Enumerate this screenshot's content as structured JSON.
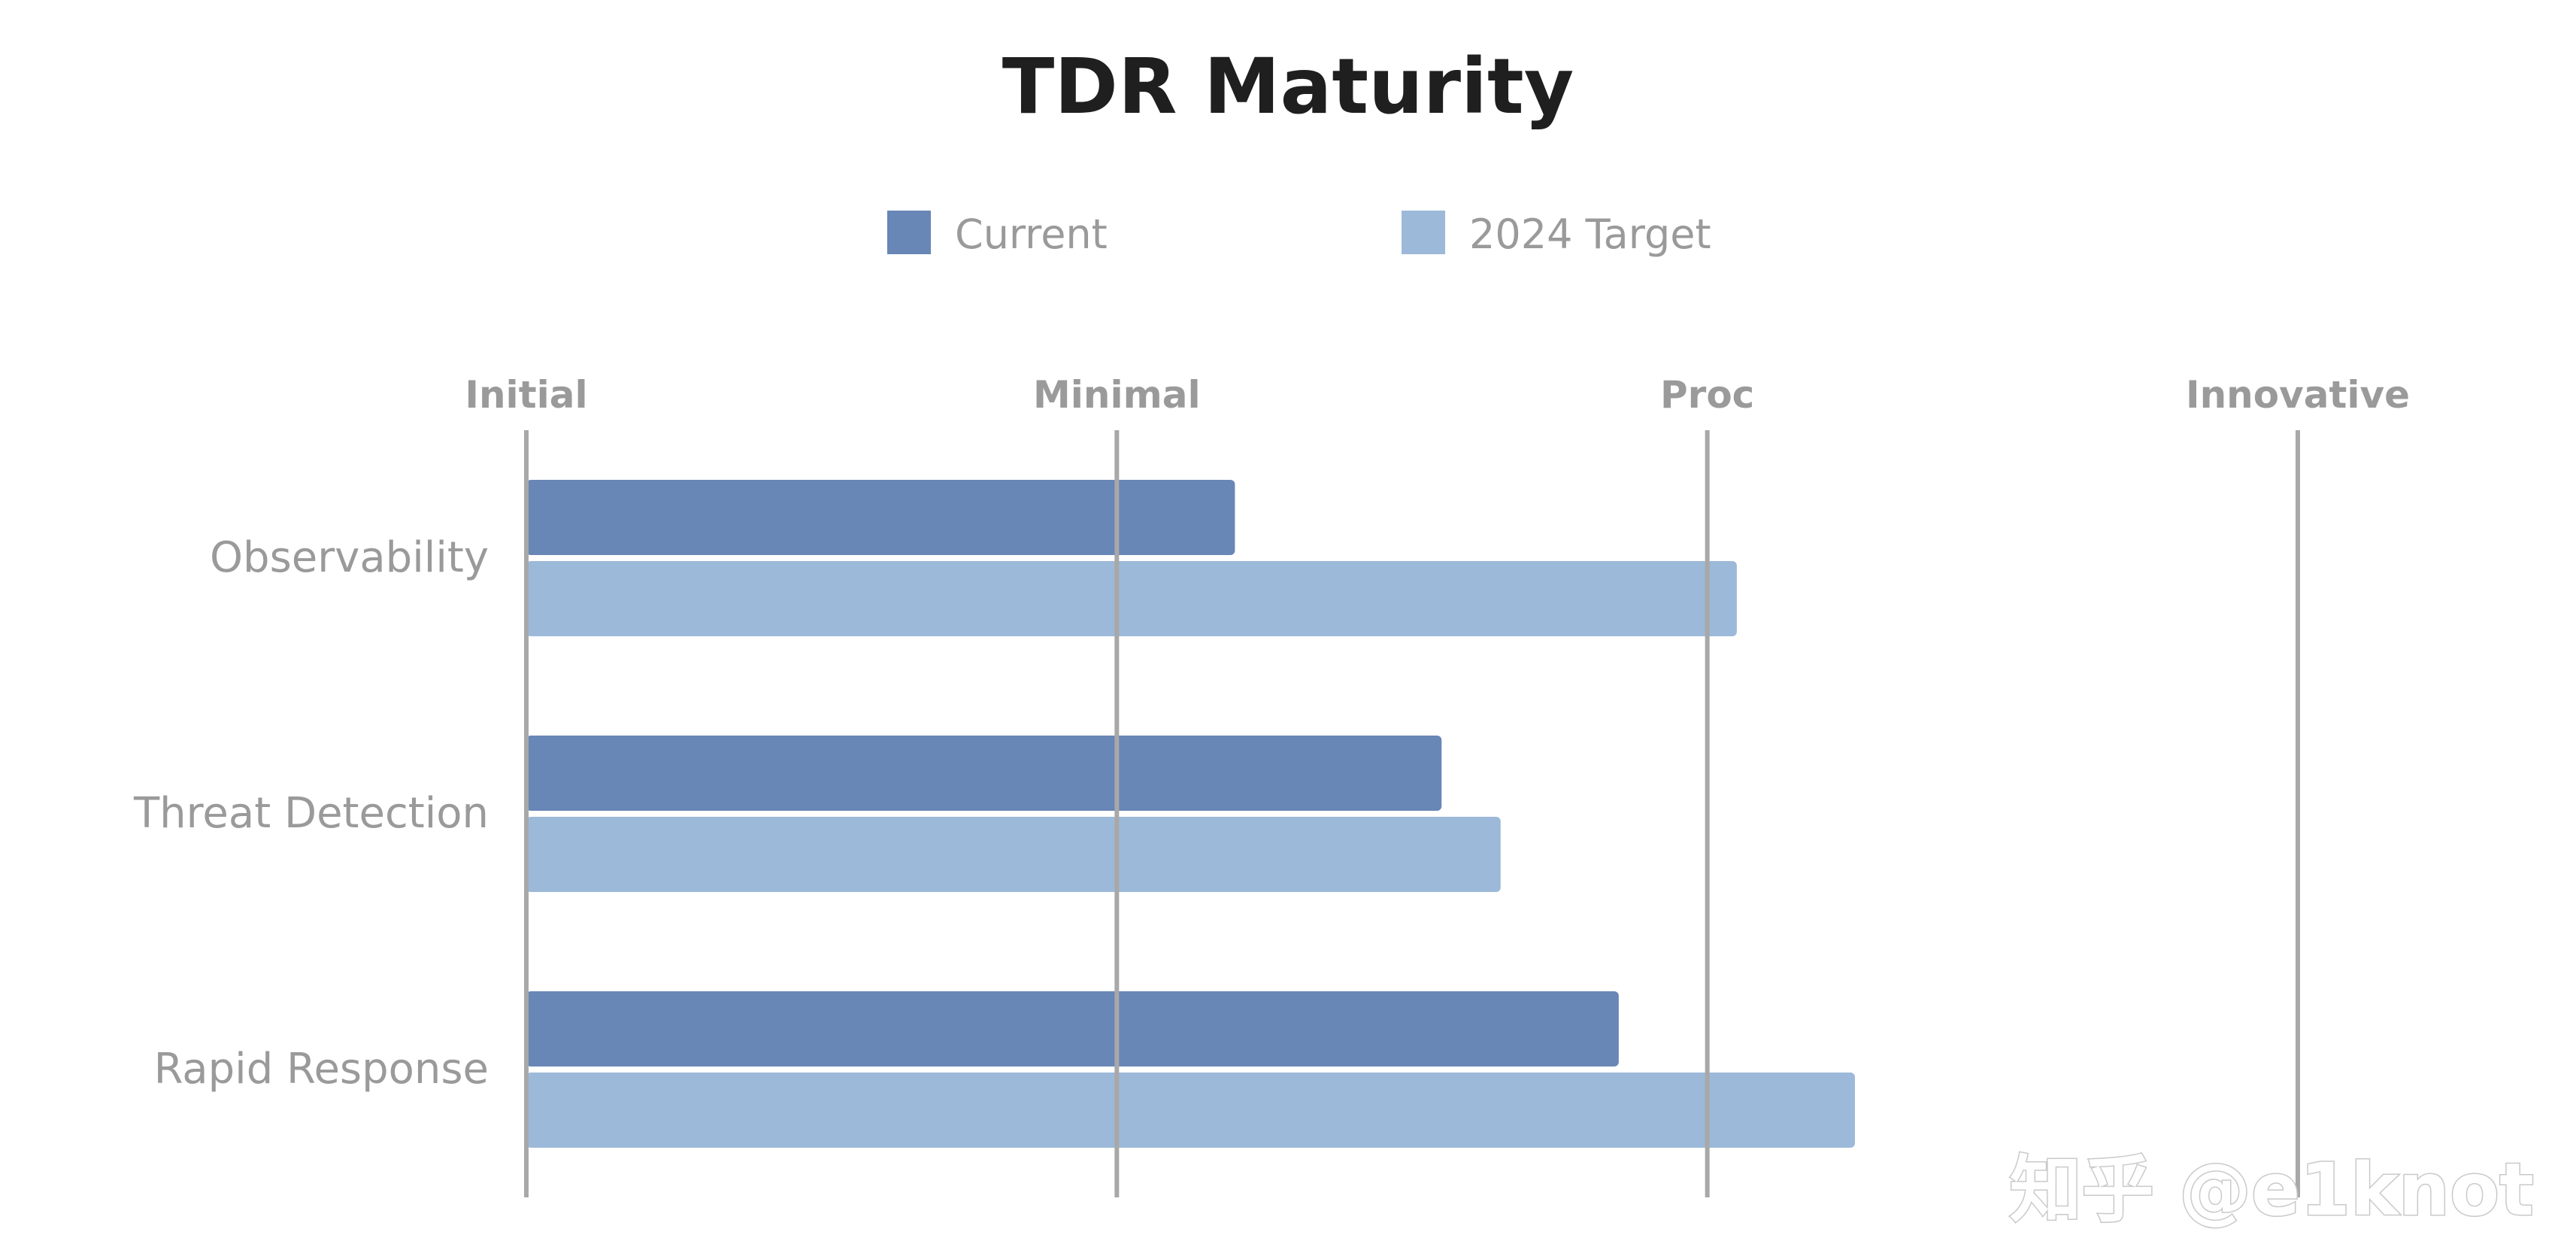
{
  "chart_data": {
    "type": "bar",
    "orientation": "horizontal",
    "title": "TDR Maturity",
    "categories": [
      "Observability",
      "Threat Detection",
      "Rapid Response"
    ],
    "x_ticks": [
      "Initial",
      "Minimal",
      "Proc",
      "Innovative"
    ],
    "xlim": [
      0,
      3
    ],
    "series": [
      {
        "name": "Current",
        "values": [
          1.2,
          1.55,
          1.85
        ],
        "color": "#6886b6"
      },
      {
        "name": "2024 Target",
        "values": [
          2.05,
          1.65,
          2.25
        ],
        "color": "#9cb9d9"
      }
    ],
    "legend_position": "top-center",
    "grid": true,
    "gridline_color": "#a8a8a8"
  },
  "watermark": {
    "text": "知乎 @e1knot"
  }
}
